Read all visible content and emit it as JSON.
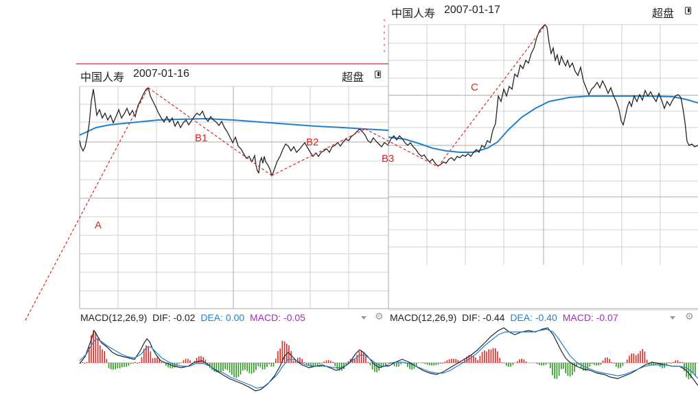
{
  "left_panel": {
    "stock": "中国人寿",
    "date": "2007-01-16",
    "button": "超盘",
    "macd": {
      "params": "MACD(12,26,9)",
      "dif_label": "DIF:",
      "dif": "-0.02",
      "dea_label": "DEA:",
      "dea": "0.00",
      "macd_label": "MACD:",
      "macd": "-0.05"
    }
  },
  "right_panel": {
    "stock": "中国人寿",
    "date": "2007-01-17",
    "button": "超盘",
    "macd": {
      "params": "MACD(12,26,9)",
      "dif_label": "DIF:",
      "dif": "-0.44",
      "dea_label": "DEA:",
      "dea": "-0.40",
      "macd_label": "MACD:",
      "macd": "-0.07"
    }
  },
  "annotations": {
    "a": "A",
    "b1": "B1",
    "b2": "B2",
    "b3": "B3",
    "c": "C"
  },
  "colors": {
    "price": "#222222",
    "average": "#1f7fd0",
    "annotation": "#e0251f",
    "dea": "#1f7fd0",
    "macd_value": "#9b30b8",
    "macd_up": "#e0251f",
    "macd_down": "#2a9a1e",
    "grid": "#cfcfcf"
  },
  "icons": {
    "dropdown": "caret-down-icon",
    "settings": "settings-icon",
    "layout": "layout-toggle-icon"
  }
}
